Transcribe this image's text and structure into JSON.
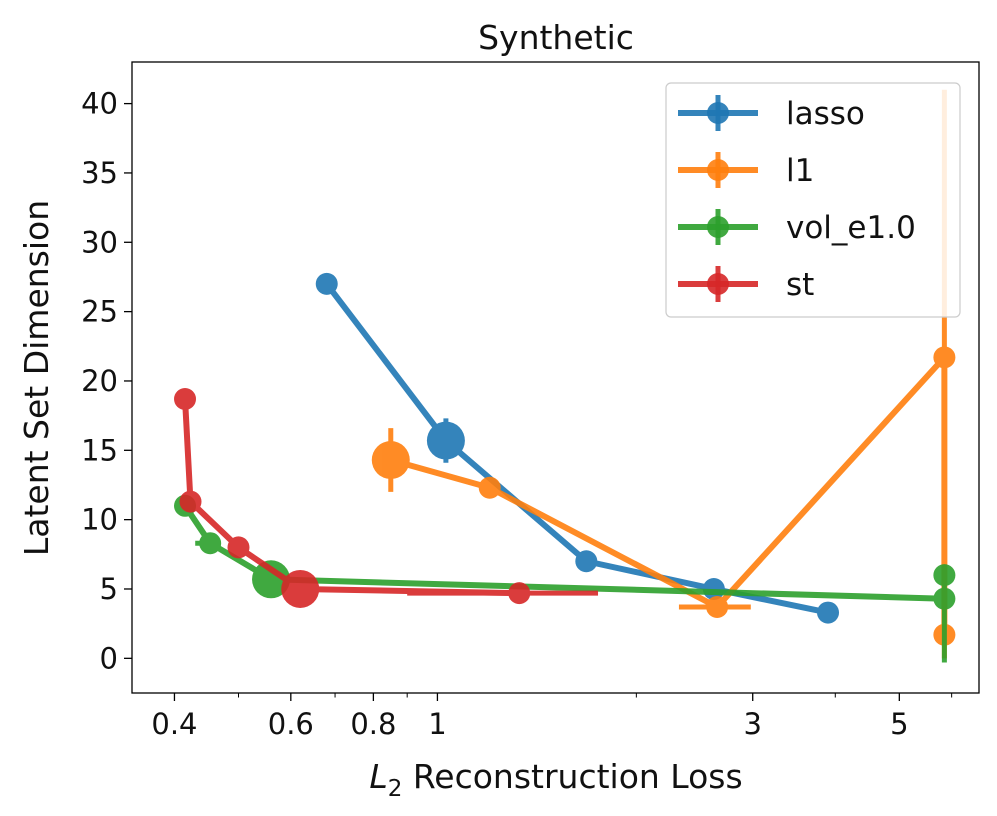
{
  "chart_data": {
    "type": "line",
    "title": "Synthetic",
    "xlabel_italic": "L",
    "xlabel_sub": "2",
    "xlabel_rest": " Reconstruction Loss",
    "ylabel": "Latent Set Dimension",
    "xscale": "log",
    "xlim": [
      0.345,
      6.6
    ],
    "ylim": [
      -2.5,
      43
    ],
    "xticks": [
      {
        "value": 0.4,
        "label": "0.4"
      },
      {
        "value": 0.6,
        "label": "0.6"
      },
      {
        "value": 0.8,
        "label": "0.8"
      },
      {
        "value": 1,
        "label": "1"
      },
      {
        "value": 3,
        "label": "3"
      },
      {
        "value": 5,
        "label": "5"
      }
    ],
    "xminorticks": [
      0.5,
      0.7,
      0.9,
      2,
      4,
      6
    ],
    "yticks": [
      0,
      5,
      10,
      15,
      20,
      25,
      30,
      35,
      40
    ],
    "legend_position": "upper right",
    "series": [
      {
        "name": "lasso",
        "color": "#1f77b4",
        "points": [
          {
            "x": 0.68,
            "y": 27.0,
            "size": 1
          },
          {
            "x": 1.03,
            "y": 15.7,
            "size": 2,
            "yerr": 1.6
          },
          {
            "x": 1.68,
            "y": 7.0,
            "size": 1
          },
          {
            "x": 2.62,
            "y": 5.0,
            "size": 1
          },
          {
            "x": 3.9,
            "y": 3.3,
            "size": 1
          }
        ]
      },
      {
        "name": "l1",
        "color": "#ff7f0e",
        "points": [
          {
            "x": 0.85,
            "y": 14.3,
            "size": 2,
            "yerr": 2.3
          },
          {
            "x": 1.2,
            "y": 12.3,
            "size": 1
          },
          {
            "x": 2.65,
            "y": 3.7,
            "size": 1,
            "xerr": [
              2.32,
              2.98
            ]
          },
          {
            "x": 5.85,
            "y": 21.7,
            "size": 1
          },
          {
            "x": 5.85,
            "y": 1.7,
            "size": 1
          }
        ],
        "vertical_errorbar": {
          "x": 5.85,
          "y_low": 0,
          "y_high": 41
        }
      },
      {
        "name": "vol_e1.0",
        "color": "#2ca02c",
        "points": [
          {
            "x": 0.415,
            "y": 11.0,
            "size": 1
          },
          {
            "x": 0.453,
            "y": 8.3,
            "size": 1,
            "xerr": [
              0.43,
              0.47
            ]
          },
          {
            "x": 0.56,
            "y": 5.7,
            "size": 2
          },
          {
            "x": 5.85,
            "y": 4.3,
            "size": 1
          }
        ],
        "extra_points": [
          {
            "x": 5.85,
            "y": 6.0,
            "size": 1
          }
        ],
        "vertical_errorbar": {
          "x": 5.85,
          "y_low": -0.3,
          "y_high": 5.5
        }
      },
      {
        "name": "st",
        "color": "#d62728",
        "points": [
          {
            "x": 0.415,
            "y": 18.7,
            "size": 1
          },
          {
            "x": 0.423,
            "y": 11.3,
            "size": 1
          },
          {
            "x": 0.5,
            "y": 8.0,
            "size": 1
          },
          {
            "x": 0.62,
            "y": 5.0,
            "size": 2
          },
          {
            "x": 1.33,
            "y": 4.7,
            "size": 1,
            "xerr": [
              0.9,
              1.75
            ]
          }
        ]
      }
    ]
  }
}
